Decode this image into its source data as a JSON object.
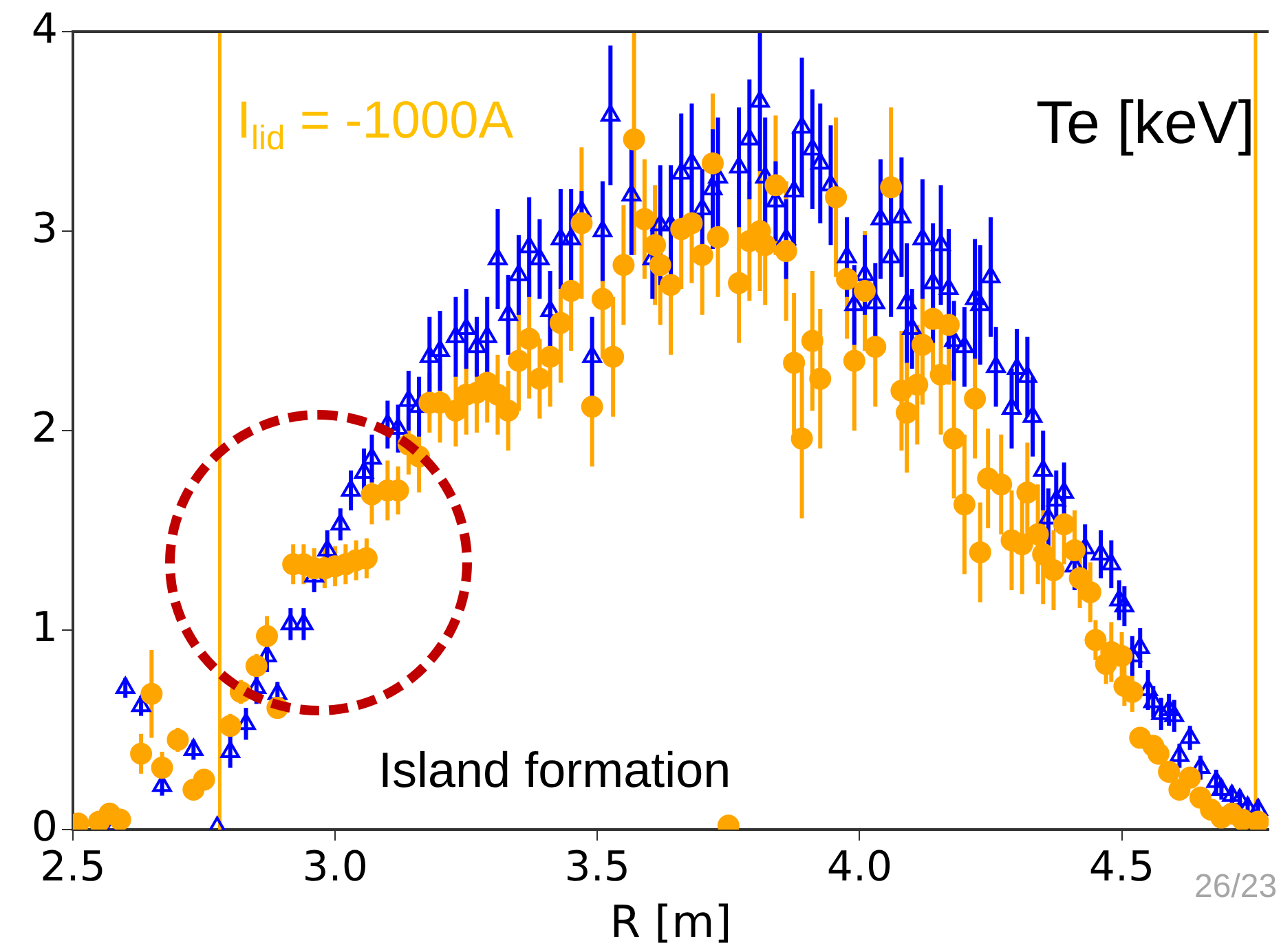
{
  "chart_data": {
    "type": "scatter",
    "xlabel": "R [m]",
    "ylabel": "Te [keV]",
    "annotations": [
      "I$_{lid}$ = -1000A",
      "Island formation",
      "26/23"
    ],
    "xlim": [
      2.5,
      4.78
    ],
    "ylim": [
      0,
      4
    ],
    "xticks": [
      {
        "value": 2.5,
        "label": "2.5"
      },
      {
        "value": 3,
        "label": "3.0"
      },
      {
        "value": 3.5,
        "label": "3.5"
      },
      {
        "value": 4,
        "label": "4.0"
      },
      {
        "value": 4.5,
        "label": "4.5"
      }
    ],
    "yticks": [
      0,
      1,
      2,
      3,
      4
    ],
    "grid": false,
    "legend": false,
    "ref_lines": [
      {
        "axis": "x",
        "value": 2.78,
        "color": "#ffb000"
      },
      {
        "axis": "x",
        "value": 4.755,
        "color": "#ffb000"
      }
    ],
    "series": [
      {
        "color": "#ffa500",
        "marker": "circle",
        "x": [
          2.51,
          2.55,
          2.57,
          2.59,
          2.63,
          2.65,
          2.67,
          2.7,
          2.73,
          2.75,
          2.8,
          2.82,
          2.85,
          2.87,
          2.89,
          2.92,
          2.94,
          2.96,
          2.98,
          3.0,
          3.02,
          3.04,
          3.06,
          3.07,
          3.1,
          3.12,
          3.14,
          3.16,
          3.18,
          3.2,
          3.23,
          3.25,
          3.27,
          3.29,
          3.31,
          3.33,
          3.35,
          3.37,
          3.39,
          3.41,
          3.43,
          3.45,
          3.47,
          3.49,
          3.51,
          3.53,
          3.55,
          3.57,
          3.59,
          3.61,
          3.62,
          3.64,
          3.66,
          3.68,
          3.7,
          3.72,
          3.73,
          3.75,
          3.77,
          3.79,
          3.81,
          3.82,
          3.84,
          3.86,
          3.875,
          3.89,
          3.91,
          3.925,
          3.955,
          3.976,
          3.99,
          4.01,
          4.03,
          4.06,
          4.08,
          4.09,
          4.11,
          4.12,
          4.14,
          4.155,
          4.17,
          4.18,
          4.2,
          4.22,
          4.23,
          4.245,
          4.27,
          4.29,
          4.31,
          4.32,
          4.34,
          4.35,
          4.37,
          4.39,
          4.41,
          4.42,
          4.44,
          4.45,
          4.47,
          4.48,
          4.5,
          4.505,
          4.52,
          4.535,
          4.56,
          4.57,
          4.59,
          4.61,
          4.63,
          4.65,
          4.67,
          4.69,
          4.71,
          4.73,
          4.76
        ],
        "values": [
          0.03,
          0.04,
          0.08,
          0.05,
          0.38,
          0.68,
          0.31,
          0.45,
          0.2,
          0.25,
          0.52,
          0.69,
          0.82,
          0.97,
          0.61,
          1.33,
          1.33,
          1.31,
          1.31,
          1.32,
          1.33,
          1.35,
          1.36,
          1.68,
          1.7,
          1.7,
          1.93,
          1.87,
          2.14,
          2.14,
          2.1,
          2.18,
          2.19,
          2.24,
          2.18,
          2.1,
          2.35,
          2.46,
          2.26,
          2.37,
          2.54,
          2.7,
          3.04,
          2.12,
          2.66,
          2.37,
          2.83,
          3.46,
          3.06,
          2.93,
          2.83,
          2.73,
          3.01,
          3.04,
          2.88,
          3.34,
          2.97,
          0.02,
          2.74,
          2.95,
          3.0,
          2.93,
          3.23,
          2.9,
          2.34,
          1.96,
          2.45,
          2.26,
          3.17,
          2.76,
          2.35,
          2.7,
          2.42,
          3.22,
          2.2,
          2.09,
          2.23,
          2.43,
          2.56,
          2.28,
          2.53,
          1.96,
          1.63,
          2.16,
          1.39,
          1.76,
          1.73,
          1.45,
          1.43,
          1.69,
          1.48,
          1.38,
          1.3,
          1.53,
          1.4,
          1.26,
          1.19,
          0.95,
          0.83,
          0.89,
          0.87,
          0.72,
          0.69,
          0.46,
          0.42,
          0.38,
          0.29,
          0.2,
          0.26,
          0.16,
          0.1,
          0.06,
          0.08,
          0.05,
          0.04
        ],
        "errors": [
          null,
          null,
          null,
          null,
          0.1,
          0.22,
          0.08,
          0.06,
          0.05,
          0.05,
          0.06,
          0.06,
          0.06,
          0.1,
          0.05,
          0.1,
          0.1,
          0.1,
          0.1,
          0.1,
          0.1,
          0.1,
          0.1,
          0.15,
          0.15,
          0.12,
          0.15,
          0.18,
          0.15,
          0.2,
          0.18,
          0.2,
          0.2,
          0.2,
          0.2,
          0.2,
          0.25,
          0.3,
          0.2,
          0.25,
          0.3,
          0.3,
          0.38,
          0.3,
          0.3,
          0.3,
          0.3,
          0.58,
          0.3,
          0.3,
          0.3,
          0.35,
          0.3,
          0.3,
          0.3,
          0.35,
          0.3,
          null,
          0.3,
          0.3,
          0.3,
          0.3,
          0.35,
          0.35,
          0.35,
          0.4,
          0.35,
          0.35,
          0.4,
          0.3,
          0.35,
          0.3,
          0.3,
          0.4,
          0.3,
          0.3,
          0.3,
          0.3,
          0.3,
          0.3,
          0.3,
          0.3,
          0.35,
          0.3,
          0.25,
          0.25,
          0.25,
          0.25,
          0.25,
          0.25,
          0.25,
          0.25,
          0.2,
          0.2,
          0.2,
          0.15,
          0.15,
          0.1,
          0.1,
          0.15,
          0.12,
          0.1,
          0.1,
          0.05,
          0.05,
          0.05,
          0.05,
          0.05,
          0.05,
          0.04,
          0.03,
          0.03,
          0.03,
          0.03,
          0.02
        ]
      },
      {
        "color": "#0000ff",
        "marker": "triangle",
        "x": [
          2.58,
          2.6,
          2.63,
          2.67,
          2.73,
          2.775,
          2.8,
          2.83,
          2.85,
          2.87,
          2.89,
          2.915,
          2.94,
          2.96,
          2.985,
          3.01,
          3.03,
          3.055,
          3.07,
          3.1,
          3.12,
          3.14,
          3.16,
          3.18,
          3.2,
          3.23,
          3.25,
          3.27,
          3.29,
          3.31,
          3.33,
          3.35,
          3.37,
          3.39,
          3.41,
          3.43,
          3.45,
          3.47,
          3.49,
          3.51,
          3.525,
          3.565,
          3.605,
          3.62,
          3.64,
          3.66,
          3.68,
          3.7,
          3.72,
          3.73,
          3.77,
          3.79,
          3.81,
          3.82,
          3.84,
          3.86,
          3.875,
          3.89,
          3.91,
          3.925,
          3.945,
          3.976,
          3.99,
          4.01,
          4.03,
          4.04,
          4.06,
          4.08,
          4.09,
          4.1,
          4.12,
          4.14,
          4.155,
          4.17,
          4.18,
          4.2,
          4.22,
          4.23,
          4.25,
          4.26,
          4.29,
          4.3,
          4.32,
          4.33,
          4.35,
          4.36,
          4.375,
          4.39,
          4.41,
          4.43,
          4.46,
          4.48,
          4.495,
          4.505,
          4.52,
          4.535,
          4.55,
          4.56,
          4.575,
          4.59,
          4.6,
          4.61,
          4.63,
          4.65,
          4.68,
          4.69,
          4.71,
          4.725,
          4.74,
          4.76
        ],
        "values": [
          0.02,
          0.71,
          0.62,
          0.22,
          0.4,
          0.01,
          0.39,
          0.53,
          0.71,
          0.87,
          0.68,
          1.03,
          1.03,
          1.27,
          1.4,
          1.53,
          1.7,
          1.79,
          1.86,
          2.03,
          2.01,
          2.15,
          2.12,
          2.37,
          2.4,
          2.47,
          2.51,
          2.42,
          2.47,
          2.86,
          2.58,
          2.78,
          2.92,
          2.86,
          2.6,
          2.96,
          2.96,
          3.1,
          2.37,
          3.0,
          3.58,
          3.18,
          2.86,
          3.03,
          3.03,
          3.29,
          3.34,
          3.11,
          3.21,
          3.27,
          3.32,
          3.46,
          3.65,
          3.27,
          3.15,
          2.96,
          3.2,
          3.52,
          3.41,
          3.34,
          3.23,
          2.87,
          2.63,
          2.78,
          2.64,
          3.06,
          2.87,
          3.07,
          2.64,
          2.51,
          2.96,
          2.74,
          2.93,
          2.71,
          2.45,
          2.42,
          2.66,
          2.63,
          2.77,
          2.32,
          2.11,
          2.31,
          2.27,
          2.07,
          1.8,
          1.56,
          1.65,
          1.69,
          1.32,
          1.41,
          1.38,
          1.33,
          1.15,
          1.12,
          0.87,
          0.91,
          0.7,
          0.64,
          0.58,
          0.6,
          0.57,
          0.37,
          0.46,
          0.31,
          0.24,
          0.2,
          0.17,
          0.15,
          0.11,
          0.1
        ],
        "errors": [
          null,
          0.05,
          0.05,
          0.05,
          0.05,
          null,
          0.08,
          0.08,
          0.08,
          0.08,
          0.06,
          0.08,
          0.08,
          0.08,
          0.1,
          0.08,
          0.1,
          0.12,
          0.12,
          0.12,
          0.12,
          0.15,
          0.15,
          0.2,
          0.2,
          0.2,
          0.2,
          0.15,
          0.2,
          0.25,
          0.2,
          0.2,
          0.25,
          0.2,
          0.2,
          0.25,
          0.25,
          0.1,
          0.2,
          0.25,
          0.35,
          0.3,
          0.2,
          0.3,
          0.3,
          0.3,
          0.3,
          0.2,
          0.3,
          0.3,
          0.3,
          0.3,
          0.35,
          0.3,
          0.2,
          0.2,
          0.3,
          0.35,
          0.3,
          0.3,
          0.3,
          0.2,
          0.2,
          0.2,
          0.2,
          0.3,
          0.3,
          0.3,
          0.3,
          0.2,
          0.3,
          0.3,
          0.3,
          0.3,
          0.2,
          0.2,
          0.3,
          0.3,
          0.3,
          0.2,
          0.2,
          0.2,
          0.2,
          0.2,
          0.2,
          0.15,
          0.15,
          0.15,
          0.12,
          0.12,
          0.12,
          0.12,
          0.1,
          0.1,
          0.1,
          0.1,
          0.1,
          0.08,
          0.08,
          0.08,
          0.08,
          0.06,
          0.06,
          0.06,
          0.06,
          0.05,
          0.05,
          0.05,
          0.05,
          0.05
        ]
      }
    ]
  }
}
